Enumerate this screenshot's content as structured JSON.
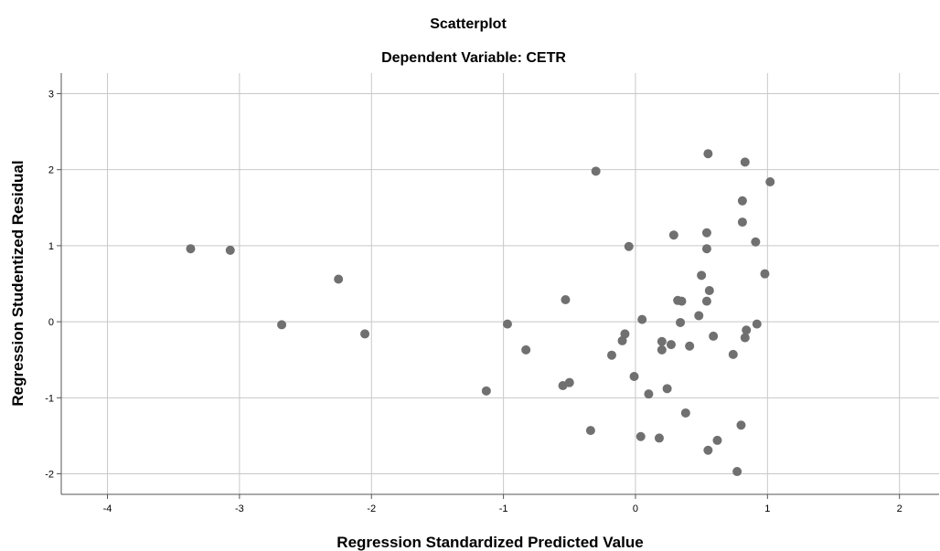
{
  "chart_data": {
    "type": "scatter",
    "title": "Scatterplot",
    "subtitle": "Dependent Variable: CETR",
    "xlabel": "Regression Standardized Predicted Value",
    "ylabel": "Regression Studentized Residual",
    "xlim": [
      -4.35,
      2.3
    ],
    "ylim": [
      -2.27,
      3.27
    ],
    "xticks": [
      -4,
      -3,
      -2,
      -1,
      0,
      1,
      2
    ],
    "yticks": [
      -2,
      -1,
      0,
      1,
      2,
      3
    ],
    "grid": true,
    "colors": {
      "point": "#707070",
      "grid": "#c8c8c8",
      "axis": "#555555"
    },
    "points": [
      {
        "x": -3.37,
        "y": 0.96
      },
      {
        "x": -3.07,
        "y": 0.94
      },
      {
        "x": -2.68,
        "y": -0.04
      },
      {
        "x": -2.25,
        "y": 0.56
      },
      {
        "x": -2.05,
        "y": -0.16
      },
      {
        "x": -1.13,
        "y": -0.91
      },
      {
        "x": -0.97,
        "y": -0.03
      },
      {
        "x": -0.83,
        "y": -0.37
      },
      {
        "x": -0.55,
        "y": -0.84
      },
      {
        "x": -0.53,
        "y": 0.29
      },
      {
        "x": -0.5,
        "y": -0.8
      },
      {
        "x": -0.34,
        "y": -1.43
      },
      {
        "x": -0.3,
        "y": 1.98
      },
      {
        "x": -0.18,
        "y": -0.44
      },
      {
        "x": -0.1,
        "y": -0.25
      },
      {
        "x": -0.08,
        "y": -0.16
      },
      {
        "x": -0.05,
        "y": 0.99
      },
      {
        "x": -0.01,
        "y": -0.72
      },
      {
        "x": 0.04,
        "y": -1.51
      },
      {
        "x": 0.05,
        "y": 0.03
      },
      {
        "x": 0.1,
        "y": -0.95
      },
      {
        "x": 0.18,
        "y": -1.53
      },
      {
        "x": 0.2,
        "y": -0.26
      },
      {
        "x": 0.2,
        "y": -0.37
      },
      {
        "x": 0.24,
        "y": -0.88
      },
      {
        "x": 0.27,
        "y": -0.3
      },
      {
        "x": 0.29,
        "y": 1.14
      },
      {
        "x": 0.32,
        "y": 0.28
      },
      {
        "x": 0.34,
        "y": -0.01
      },
      {
        "x": 0.35,
        "y": 0.27
      },
      {
        "x": 0.38,
        "y": -1.2
      },
      {
        "x": 0.41,
        "y": -0.32
      },
      {
        "x": 0.48,
        "y": 0.08
      },
      {
        "x": 0.5,
        "y": 0.61
      },
      {
        "x": 0.54,
        "y": 1.17
      },
      {
        "x": 0.54,
        "y": 0.96
      },
      {
        "x": 0.54,
        "y": 0.27
      },
      {
        "x": 0.55,
        "y": 2.21
      },
      {
        "x": 0.55,
        "y": -1.69
      },
      {
        "x": 0.56,
        "y": 0.41
      },
      {
        "x": 0.59,
        "y": -0.19
      },
      {
        "x": 0.62,
        "y": -1.56
      },
      {
        "x": 0.74,
        "y": -0.43
      },
      {
        "x": 0.77,
        "y": -1.97
      },
      {
        "x": 0.8,
        "y": -1.36
      },
      {
        "x": 0.81,
        "y": 1.59
      },
      {
        "x": 0.81,
        "y": 1.31
      },
      {
        "x": 0.83,
        "y": 2.1
      },
      {
        "x": 0.83,
        "y": -0.21
      },
      {
        "x": 0.84,
        "y": -0.11
      },
      {
        "x": 0.91,
        "y": 1.05
      },
      {
        "x": 0.92,
        "y": -0.03
      },
      {
        "x": 0.98,
        "y": 0.63
      },
      {
        "x": 1.02,
        "y": 1.84
      }
    ]
  }
}
